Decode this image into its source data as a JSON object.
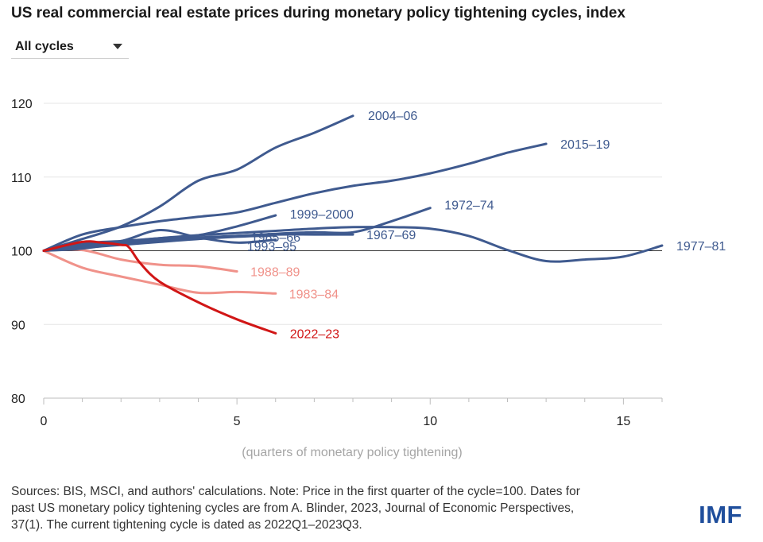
{
  "header": {
    "title": "US real commercial real estate prices during monetary policy tightening cycles, index"
  },
  "filter": {
    "selected": "All cycles",
    "icon": "caret-down-icon"
  },
  "chart_data": {
    "type": "line",
    "title": "US real commercial real estate prices during monetary policy tightening cycles, index",
    "xlabel": "(quarters of monetary policy tightening)",
    "ylabel": "",
    "xlim": [
      0,
      16
    ],
    "ylim": [
      80,
      120
    ],
    "x_ticks": [
      0,
      5,
      10,
      15
    ],
    "y_ticks": [
      80,
      90,
      100,
      110,
      120
    ],
    "x_tick_labels": [
      "0",
      "5",
      "10",
      "15"
    ],
    "y_tick_labels": [
      "80",
      "90",
      "100",
      "110",
      "120"
    ],
    "reference_line": 100,
    "colors": {
      "past": "#3f5a8f",
      "light": "#f0928a",
      "current": "#d11616"
    },
    "series": [
      {
        "name": "1977–81",
        "color": "#3f5a8f",
        "x": [
          0,
          1,
          2,
          3,
          4,
          5,
          6,
          7,
          8,
          9,
          10,
          11,
          12,
          13,
          14,
          15,
          16
        ],
        "y": [
          100,
          100.6,
          101.2,
          101.7,
          102.1,
          102.4,
          102.7,
          103,
          103.2,
          103.2,
          103,
          102,
          100.1,
          98.6,
          98.8,
          99.2,
          100.7
        ]
      },
      {
        "name": "2004–06",
        "color": "#3f5a8f",
        "x": [
          0,
          1,
          2,
          3,
          4,
          5,
          6,
          7,
          8
        ],
        "y": [
          100,
          101.6,
          103.3,
          106,
          109.5,
          111,
          114,
          116,
          118.3
        ]
      },
      {
        "name": "2015–19",
        "color": "#3f5a8f",
        "x": [
          0,
          1,
          2,
          3,
          4,
          5,
          6,
          7,
          8,
          9,
          10,
          11,
          12,
          13
        ],
        "y": [
          100,
          102.2,
          103.2,
          104,
          104.6,
          105.2,
          106.5,
          107.8,
          108.8,
          109.5,
          110.5,
          111.8,
          113.3,
          114.5
        ]
      },
      {
        "name": "1972–74",
        "color": "#3f5a8f",
        "x": [
          0,
          1,
          2,
          3,
          4,
          5,
          6,
          7,
          8,
          9,
          10
        ],
        "y": [
          100,
          100.6,
          101,
          101.5,
          101.8,
          102,
          102.3,
          102.5,
          102.5,
          104,
          105.8
        ]
      },
      {
        "name": "1999–2000",
        "color": "#3f5a8f",
        "x": [
          0,
          1,
          2,
          3,
          4,
          5,
          6
        ],
        "y": [
          100,
          101,
          101.3,
          101.7,
          102.1,
          103.3,
          104.8
        ]
      },
      {
        "name": "1967–69",
        "color": "#3f5a8f",
        "x": [
          0,
          1,
          2,
          3,
          4,
          5,
          6,
          7,
          8
        ],
        "y": [
          100,
          100.3,
          101,
          101.4,
          101.7,
          102,
          102.2,
          102.2,
          102.2
        ]
      },
      {
        "name": "1965–66",
        "color": "#3f5a8f",
        "x": [
          0,
          1,
          2,
          3,
          4,
          5,
          6
        ],
        "y": [
          100,
          100.4,
          100.8,
          101.2,
          101.6,
          101.9,
          102.1
        ]
      },
      {
        "name": "1993–95",
        "color": "#3f5a8f",
        "x": [
          0,
          1,
          2,
          3,
          4,
          5,
          6
        ],
        "y": [
          100,
          100.7,
          101.3,
          102.8,
          101.8,
          101.1,
          101.5
        ]
      },
      {
        "name": "1988–89",
        "color": "#f0928a",
        "x": [
          0,
          1,
          2,
          3,
          4,
          5
        ],
        "y": [
          100,
          100.1,
          98.8,
          98.1,
          97.9,
          97.2
        ]
      },
      {
        "name": "1983–84",
        "color": "#f0928a",
        "x": [
          0,
          1,
          2,
          3,
          4,
          5,
          6
        ],
        "y": [
          100,
          97.7,
          96.5,
          95.4,
          94.3,
          94.4,
          94.2
        ]
      },
      {
        "name": "2022–23",
        "color": "#d11616",
        "x": [
          0,
          1,
          1.5,
          2,
          2.2,
          2.5,
          3,
          4,
          5,
          6
        ],
        "y": [
          100,
          101.2,
          101.1,
          100.8,
          100.5,
          98.3,
          95.8,
          93,
          90.7,
          88.8
        ]
      }
    ]
  },
  "footnote": {
    "line1": "Sources: BIS, MSCI, and authors' calculations. Note: Price in the first quarter of the cycle=100. Dates for",
    "line2": "past US monetary policy tightening cycles are from A. Blinder, 2023, Journal of Economic Perspectives,",
    "line3": "37(1). The current tightening cycle is dated as 2022Q1–2023Q3."
  },
  "logo": {
    "text": "IMF"
  }
}
